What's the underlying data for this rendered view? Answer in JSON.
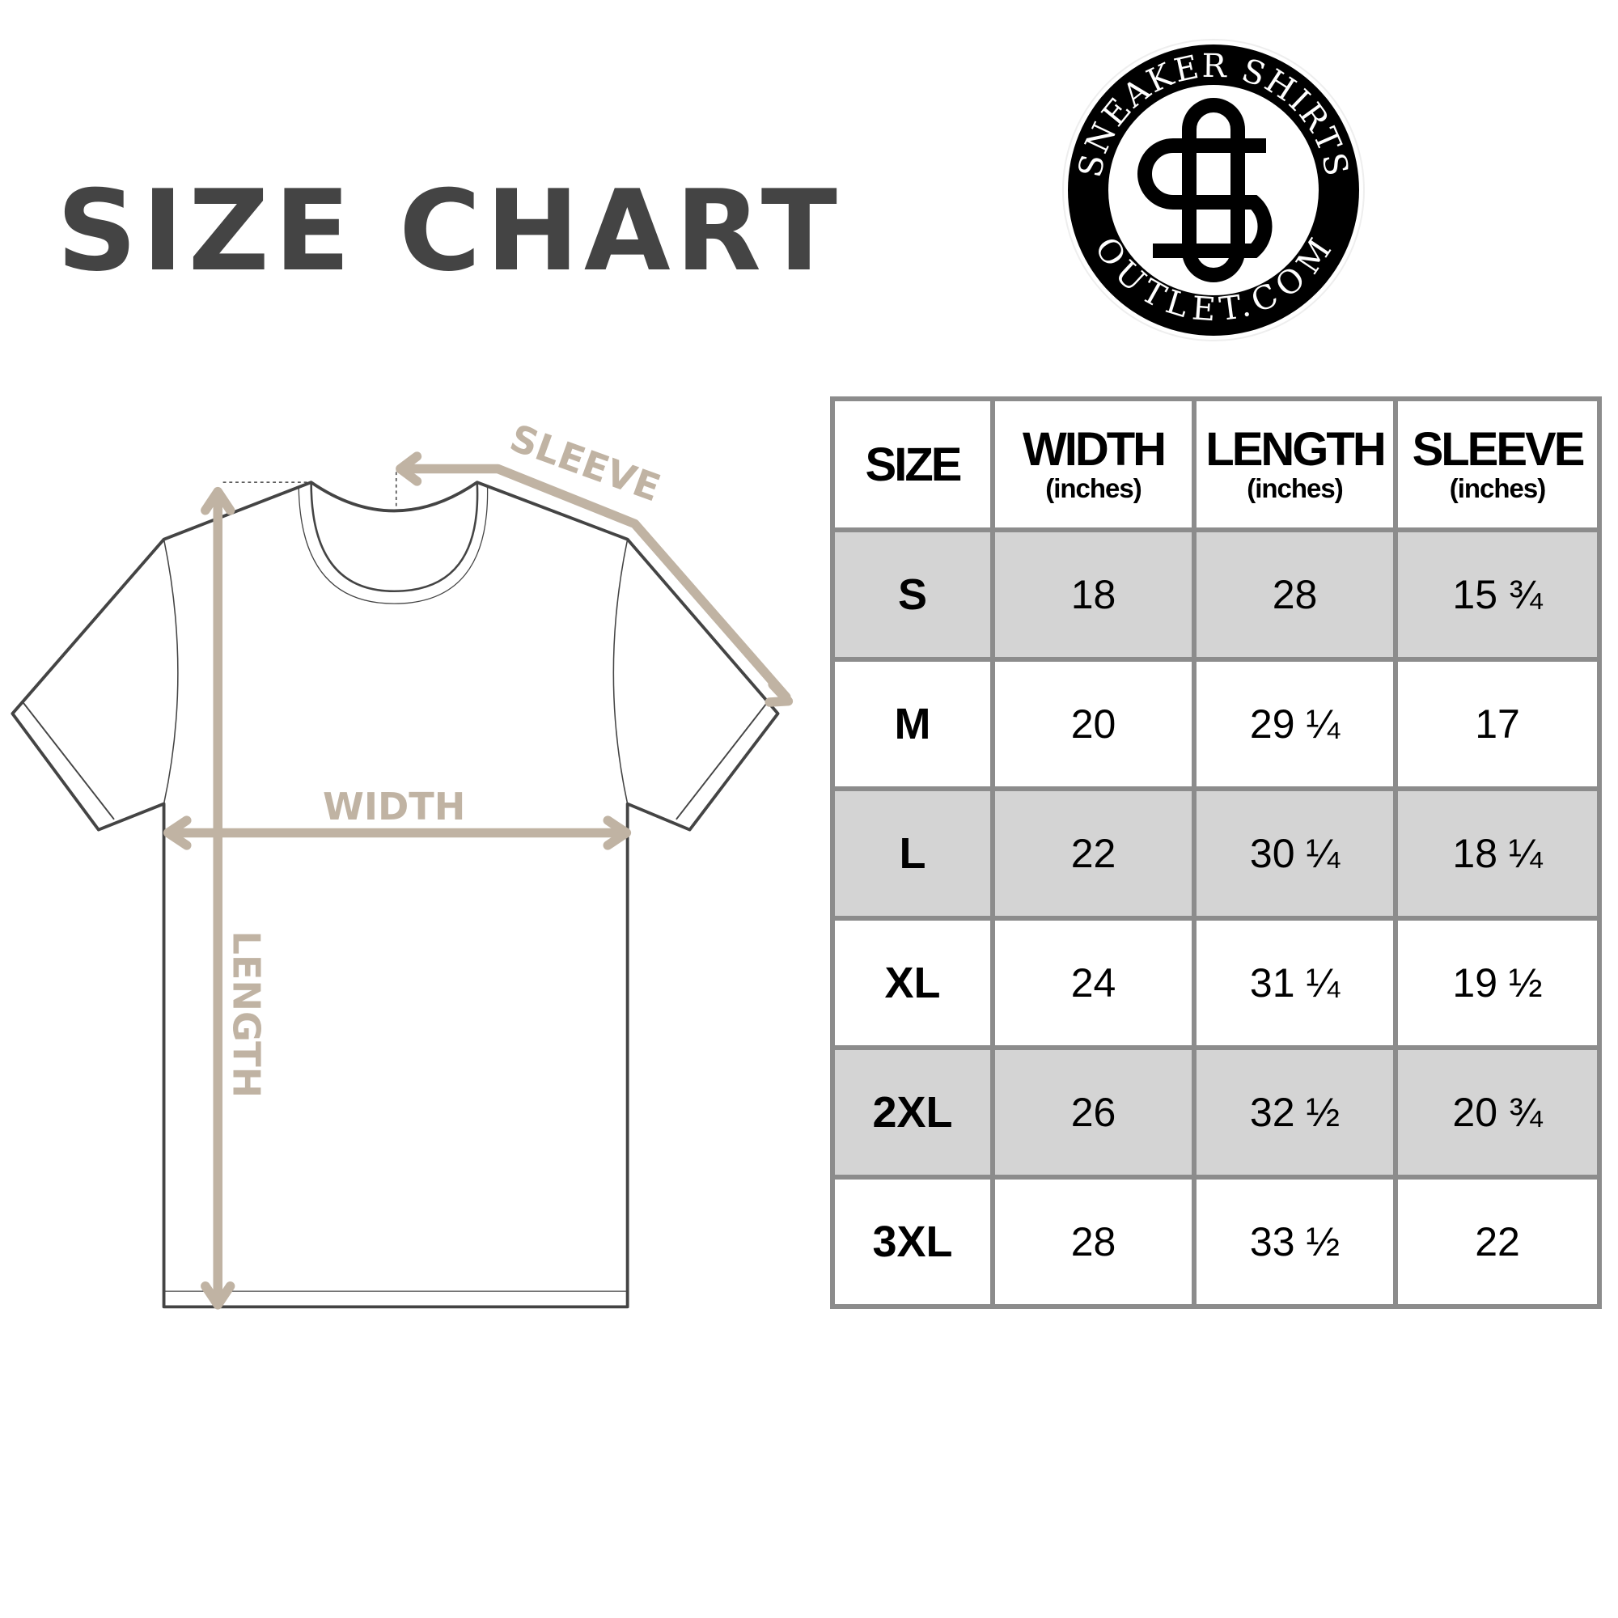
{
  "title": "SIZE CHART",
  "logo": {
    "top_text": "SNEAKER SHIRTS",
    "bottom_text": "OUTLET.COM",
    "monogram": "SO"
  },
  "diagram": {
    "sleeve_label": "SLEEVE",
    "width_label": "WIDTH",
    "length_label": "LENGTH"
  },
  "colors": {
    "accent": "#c0b3a3",
    "title": "#444444",
    "row_shade": "#d4d4d4",
    "border": "#8c8c8c"
  },
  "table": {
    "headers": [
      {
        "label": "SIZE",
        "unit": ""
      },
      {
        "label": "WIDTH",
        "unit": "(inches)"
      },
      {
        "label": "LENGTH",
        "unit": "(inches)"
      },
      {
        "label": "SLEEVE",
        "unit": "(inches)"
      }
    ],
    "rows": [
      [
        "S",
        "18",
        "28",
        "15 ¾"
      ],
      [
        "M",
        "20",
        "29 ¼",
        "17"
      ],
      [
        "L",
        "22",
        "30 ¼",
        "18 ¼"
      ],
      [
        "XL",
        "24",
        "31 ¼",
        "19 ½"
      ],
      [
        "2XL",
        "26",
        "32 ½",
        "20 ¾"
      ],
      [
        "3XL",
        "28",
        "33 ½",
        "22"
      ]
    ]
  }
}
